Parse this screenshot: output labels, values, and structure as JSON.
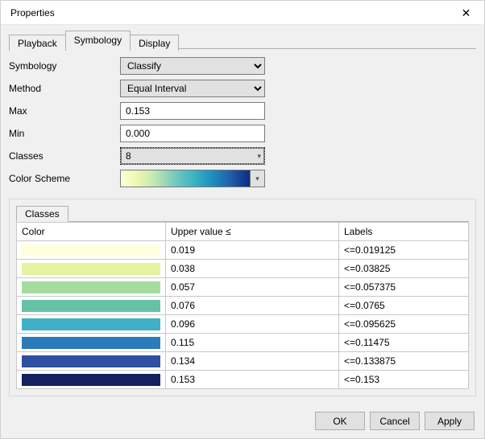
{
  "window": {
    "title": "Properties",
    "close_glyph": "✕"
  },
  "tabs": {
    "playback": "Playback",
    "symbology": "Symbology",
    "display": "Display",
    "active": "symbology"
  },
  "form": {
    "symbology_label": "Symbology",
    "symbology_value": "Classify",
    "method_label": "Method",
    "method_value": "Equal Interval",
    "max_label": "Max",
    "max_value": "0.153",
    "min_label": "Min",
    "min_value": "0.000",
    "classes_label": "Classes",
    "classes_value": "8",
    "scheme_label": "Color Scheme",
    "scheme_gradient_css": "linear-gradient(to right,#ffffe0 0%,#edf8b1 12%,#c7e9b4 25%,#7fcdbb 40%,#41b6c4 55%,#1d91c0 70%,#225ea8 85%,#0c2c84 100%)"
  },
  "class_table": {
    "tab_label": "Classes",
    "headers": {
      "color": "Color",
      "upper": "Upper value ≤",
      "labels": "Labels"
    },
    "rows": [
      {
        "color": "#ffffe0",
        "upper": "0.019",
        "label": "<=0.019125"
      },
      {
        "color": "#e5f3a2",
        "upper": "0.038",
        "label": "<=0.03825"
      },
      {
        "color": "#a6dba0",
        "upper": "0.057",
        "label": "<=0.057375"
      },
      {
        "color": "#66c2a5",
        "upper": "0.076",
        "label": "<=0.0765"
      },
      {
        "color": "#3fb0c8",
        "upper": "0.096",
        "label": "<=0.095625"
      },
      {
        "color": "#2b7bba",
        "upper": "0.115",
        "label": "<=0.11475"
      },
      {
        "color": "#2e4fa2",
        "upper": "0.134",
        "label": "<=0.133875"
      },
      {
        "color": "#12215f",
        "upper": "0.153",
        "label": "<=0.153"
      }
    ]
  },
  "footer": {
    "ok": "OK",
    "cancel": "Cancel",
    "apply": "Apply"
  },
  "glyphs": {
    "dropdown_arrow": "▾"
  }
}
